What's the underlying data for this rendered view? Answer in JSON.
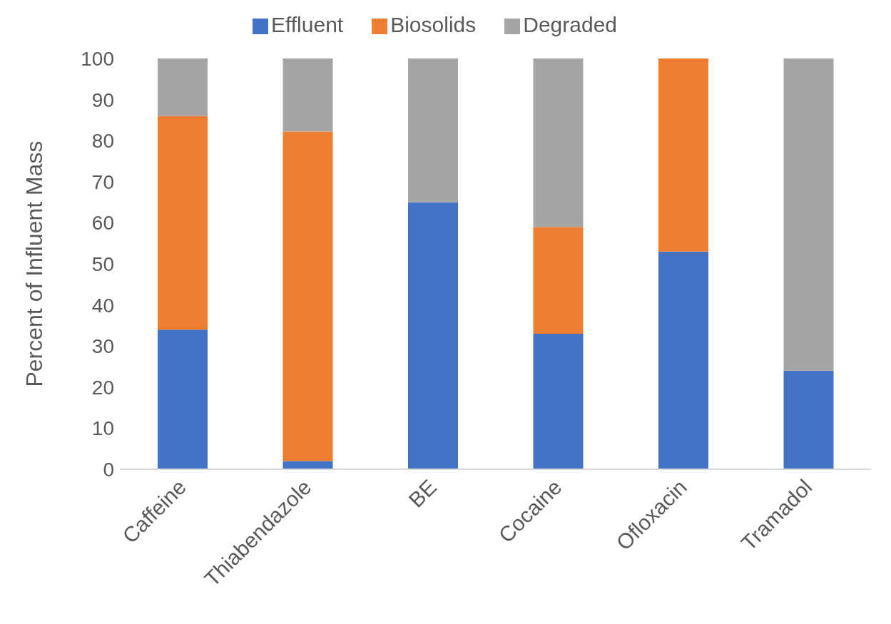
{
  "chart_data": {
    "type": "bar",
    "stacked": true,
    "ylabel": "Percent of Influent Mass",
    "categories": [
      "Caffeine",
      "Thiabendazole",
      "BE",
      "Cocaine",
      "Ofloxacin",
      "Tramadol"
    ],
    "series": [
      {
        "name": "Effluent",
        "color": "#4472c4",
        "values": [
          34,
          2,
          65,
          33,
          53,
          24
        ]
      },
      {
        "name": "Biosolids",
        "color": "#ed7d31",
        "values": [
          52,
          80.2,
          null,
          26,
          47,
          null
        ]
      },
      {
        "name": "Degraded",
        "color": "#a5a5a5",
        "values": [
          14,
          17.8,
          35,
          41,
          null,
          76
        ]
      }
    ],
    "ylim": [
      0,
      100
    ],
    "yticks": [
      0,
      10,
      20,
      30,
      40,
      50,
      60,
      70,
      80,
      90,
      100
    ],
    "grid": false,
    "legend": "top"
  }
}
